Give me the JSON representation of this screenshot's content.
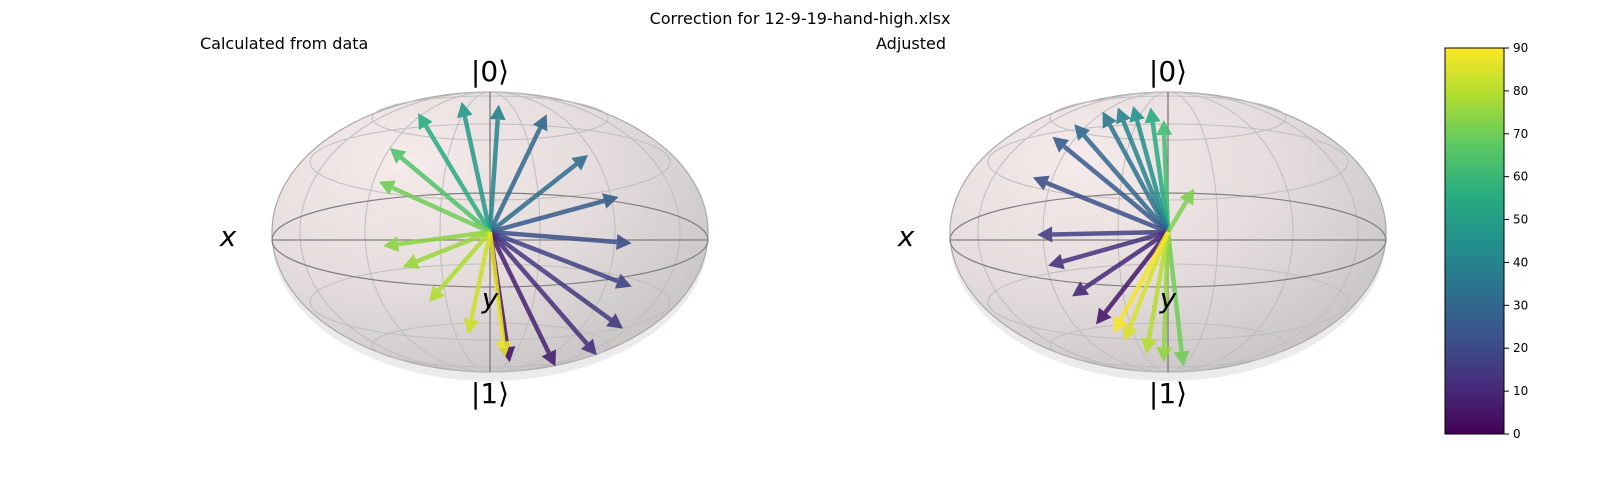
{
  "title": "Correction for 12-9-19-hand-high.xlsx",
  "panels": [
    {
      "title": "Calculated from data",
      "labels": {
        "top": "|0⟩",
        "bottom": "|1⟩",
        "x": "x",
        "y": "y"
      },
      "vectors": [
        {
          "dx": 0.26,
          "dy": -0.84,
          "v": 30
        },
        {
          "dx": 0.45,
          "dy": -0.55,
          "v": 32
        },
        {
          "dx": 0.59,
          "dy": -0.25,
          "v": 26
        },
        {
          "dx": 0.65,
          "dy": 0.08,
          "v": 22
        },
        {
          "dx": 0.65,
          "dy": 0.39,
          "v": 18
        },
        {
          "dx": 0.61,
          "dy": 0.69,
          "v": 15
        },
        {
          "dx": 0.49,
          "dy": 0.88,
          "v": 12
        },
        {
          "dx": 0.3,
          "dy": 0.96,
          "v": 8
        },
        {
          "dx": 0.09,
          "dy": 0.93,
          "v": 5
        },
        {
          "dx": 0.04,
          "dy": -0.91,
          "v": 40
        },
        {
          "dx": -0.13,
          "dy": -0.93,
          "v": 48
        },
        {
          "dx": -0.33,
          "dy": -0.85,
          "v": 56
        },
        {
          "dx": -0.46,
          "dy": -0.6,
          "v": 65
        },
        {
          "dx": -0.51,
          "dy": -0.36,
          "v": 70
        },
        {
          "dx": -0.49,
          "dy": 0.1,
          "v": 74
        },
        {
          "dx": -0.4,
          "dy": 0.25,
          "v": 76
        },
        {
          "dx": -0.28,
          "dy": 0.5,
          "v": 79
        },
        {
          "dx": -0.1,
          "dy": 0.73,
          "v": 83
        },
        {
          "dx": 0.07,
          "dy": 0.89,
          "v": 87
        }
      ]
    },
    {
      "title": "Adjusted",
      "labels": {
        "top": "|0⟩",
        "bottom": "|1⟩",
        "x": "x",
        "y": "y"
      },
      "vectors": [
        {
          "dx": -0.02,
          "dy": -0.8,
          "v": 62
        },
        {
          "dx": -0.08,
          "dy": -0.89,
          "v": 55
        },
        {
          "dx": -0.16,
          "dy": -0.9,
          "v": 45
        },
        {
          "dx": -0.23,
          "dy": -0.89,
          "v": 40
        },
        {
          "dx": -0.3,
          "dy": -0.86,
          "v": 35
        },
        {
          "dx": -0.43,
          "dy": -0.77,
          "v": 30
        },
        {
          "dx": -0.53,
          "dy": -0.68,
          "v": 26
        },
        {
          "dx": -0.62,
          "dy": -0.39,
          "v": 22
        },
        {
          "dx": -0.6,
          "dy": 0.02,
          "v": 17
        },
        {
          "dx": -0.55,
          "dy": 0.24,
          "v": 13
        },
        {
          "dx": -0.44,
          "dy": 0.46,
          "v": 10
        },
        {
          "dx": -0.33,
          "dy": 0.66,
          "v": 6
        },
        {
          "dx": 0.12,
          "dy": -0.31,
          "v": 72
        },
        {
          "dx": 0.07,
          "dy": 0.96,
          "v": 70
        },
        {
          "dx": -0.02,
          "dy": 0.93,
          "v": 75
        },
        {
          "dx": -0.1,
          "dy": 0.87,
          "v": 80
        },
        {
          "dx": -0.2,
          "dy": 0.78,
          "v": 85
        },
        {
          "dx": -0.25,
          "dy": 0.72,
          "v": 89
        }
      ]
    }
  ],
  "colorbar": {
    "min": 0,
    "max": 90,
    "ticks": [
      "0",
      "10",
      "20",
      "30",
      "40",
      "50",
      "60",
      "70",
      "80",
      "90"
    ],
    "colormap": "viridis"
  }
}
